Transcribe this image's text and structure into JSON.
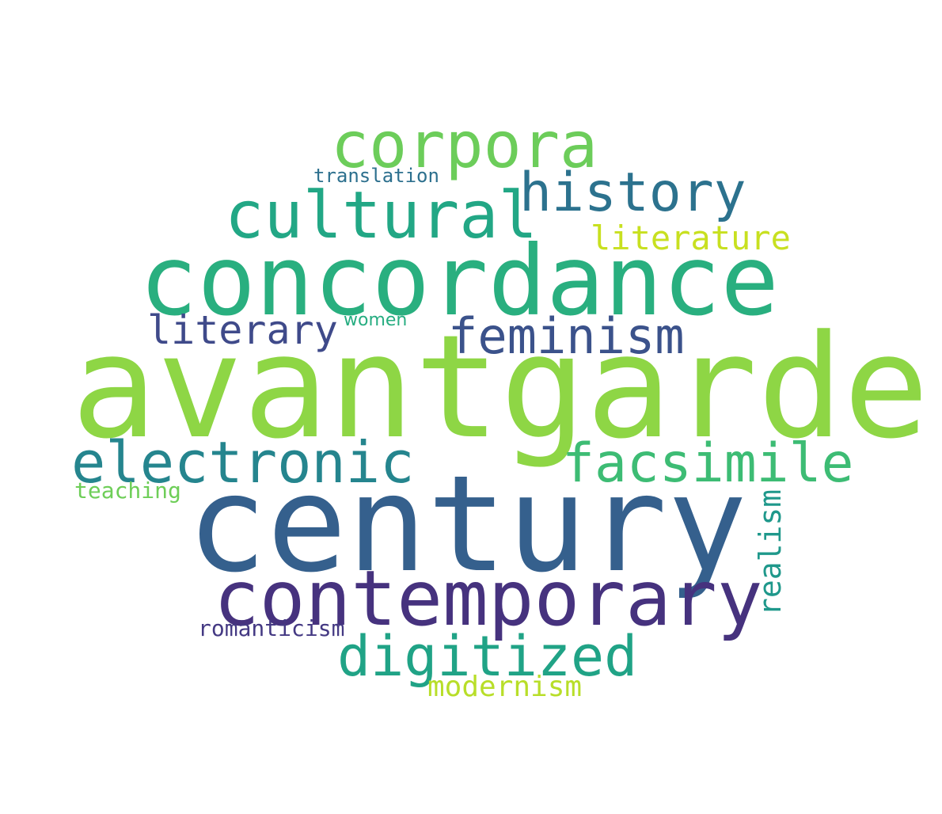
{
  "words": {
    "avantgarde": {
      "text": "avantgarde",
      "color": "#8ed645"
    },
    "century": {
      "text": "century",
      "color": "#35608d"
    },
    "concordance": {
      "text": "concordance",
      "color": "#29af7f"
    },
    "contemporary": {
      "text": "contemporary",
      "color": "#46327e"
    },
    "cultural": {
      "text": "cultural",
      "color": "#22a785"
    },
    "corpora": {
      "text": "corpora",
      "color": "#6ccd5a"
    },
    "history": {
      "text": "history",
      "color": "#2c728e"
    },
    "electronic": {
      "text": "electronic",
      "color": "#25858e"
    },
    "facsimile": {
      "text": "facsimile",
      "color": "#3dbc74"
    },
    "feminism": {
      "text": "feminism",
      "color": "#3b528b"
    },
    "digitized": {
      "text": "digitized",
      "color": "#20a386"
    },
    "literary": {
      "text": "literary",
      "color": "#3f4a8a"
    },
    "literature": {
      "text": "literature",
      "color": "#c8e020"
    },
    "modernism": {
      "text": "modernism",
      "color": "#b8de29"
    },
    "realism": {
      "text": "realism",
      "color": "#1f988b"
    },
    "romanticism": {
      "text": "romanticism",
      "color": "#443983"
    },
    "translation": {
      "text": "translation",
      "color": "#2d708e"
    },
    "teaching": {
      "text": "teaching",
      "color": "#6ece58"
    },
    "women": {
      "text": "women",
      "color": "#27ad81"
    }
  }
}
